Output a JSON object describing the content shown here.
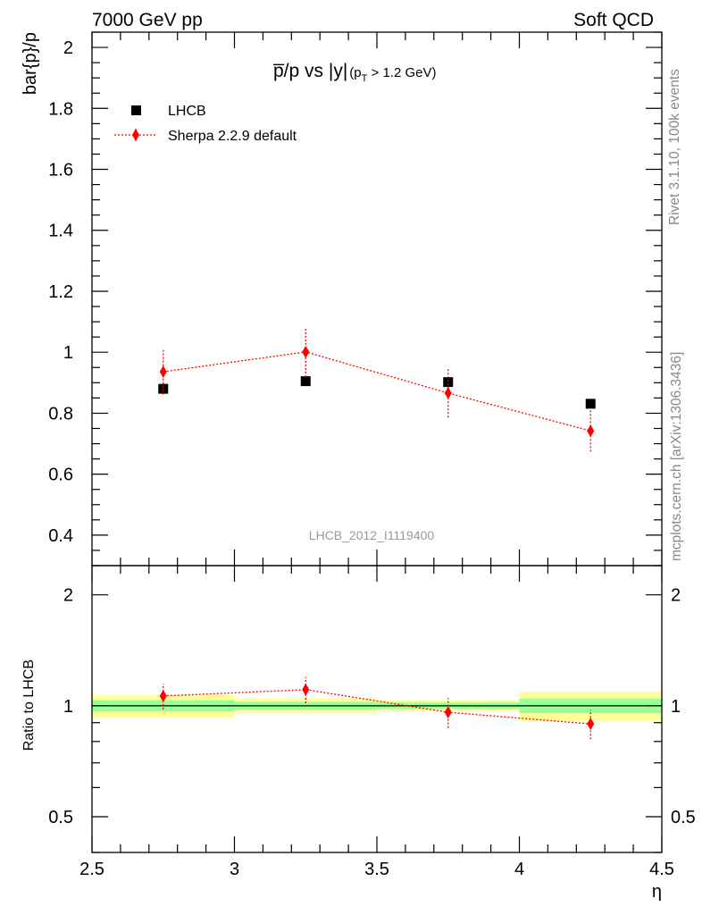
{
  "header": {
    "left": "7000 GeV pp",
    "right": "Soft QCD"
  },
  "side_labels": {
    "rivet": "Rivet 3.1.10,  100k events",
    "mcplots": "mcplots.cern.ch [arXiv:1306.3436]"
  },
  "watermark": "LHCB_2012_I1119400",
  "title": {
    "main": "p̅/p vs |y|",
    "sub_p": "(p",
    "sub_T": "T",
    "sub_rest": " > 1.2 GeV)"
  },
  "legend": {
    "entries": [
      "LHCB",
      "Sherpa 2.2.9 default"
    ]
  },
  "chart_data": [
    {
      "type": "scatter",
      "title": "p̅/p vs |y| (pT > 1.2 GeV)",
      "ylabel": "bar{p}/p",
      "xlabel": "η",
      "xlim": [
        2.5,
        4.5
      ],
      "ylim": [
        0.3,
        2.05
      ],
      "yticks": [
        "0.4",
        "0.6",
        "0.8",
        "1",
        "1.2",
        "1.4",
        "1.6",
        "1.8",
        "2"
      ],
      "ytick_values": [
        0.4,
        0.6,
        0.8,
        1.0,
        1.2,
        1.4,
        1.6,
        1.8,
        2.0
      ],
      "legend_position": "top-left",
      "series": [
        {
          "name": "LHCB",
          "color": "#000000",
          "marker": "square",
          "x": [
            2.75,
            3.25,
            3.75,
            4.25
          ],
          "x_err": [
            0.25,
            0.25,
            0.25,
            0.25
          ],
          "y": [
            0.88,
            0.905,
            0.902,
            0.831
          ],
          "y_err": [
            0.01,
            0.01,
            0.01,
            0.01
          ]
        },
        {
          "name": "Sherpa 2.2.9 default",
          "color": "#ff0000",
          "marker": "diamond",
          "line": "dotted",
          "x": [
            2.75,
            3.25,
            3.75,
            4.25
          ],
          "y": [
            0.936,
            1.001,
            0.866,
            0.742
          ],
          "y_err": [
            0.075,
            0.082,
            0.08,
            0.068
          ]
        }
      ]
    },
    {
      "type": "scatter",
      "ylabel": "Ratio to LHCB",
      "xlabel": "η",
      "xlim": [
        2.5,
        4.5
      ],
      "ylim": [
        0.4,
        2.4
      ],
      "log_y": true,
      "xticks": [
        "2.5",
        "3",
        "3.5",
        "4",
        "4.5"
      ],
      "xtick_values": [
        2.5,
        3.0,
        3.5,
        4.0,
        4.5
      ],
      "yticks": [
        "0.5",
        "1",
        "2"
      ],
      "ytick_values": [
        0.5,
        1.0,
        2.0
      ],
      "bands": {
        "x_edges": [
          2.5,
          3.0,
          3.5,
          4.0,
          4.5
        ],
        "inner_color": "#99ff99",
        "outer_color": "#ffff99",
        "inner": [
          [
            0.965,
            1.035
          ],
          [
            0.975,
            1.025
          ],
          [
            0.98,
            1.02
          ],
          [
            0.955,
            1.045
          ]
        ],
        "outer": [
          [
            0.93,
            1.07
          ],
          [
            0.955,
            1.045
          ],
          [
            0.965,
            1.035
          ],
          [
            0.91,
            1.09
          ]
        ]
      },
      "series": [
        {
          "name": "Sherpa 2.2.9 default",
          "color": "#ff0000",
          "x": [
            2.75,
            3.25,
            3.75,
            4.25
          ],
          "y": [
            1.063,
            1.106,
            0.96,
            0.893
          ],
          "y_err": [
            0.085,
            0.09,
            0.089,
            0.082
          ]
        }
      ]
    }
  ]
}
